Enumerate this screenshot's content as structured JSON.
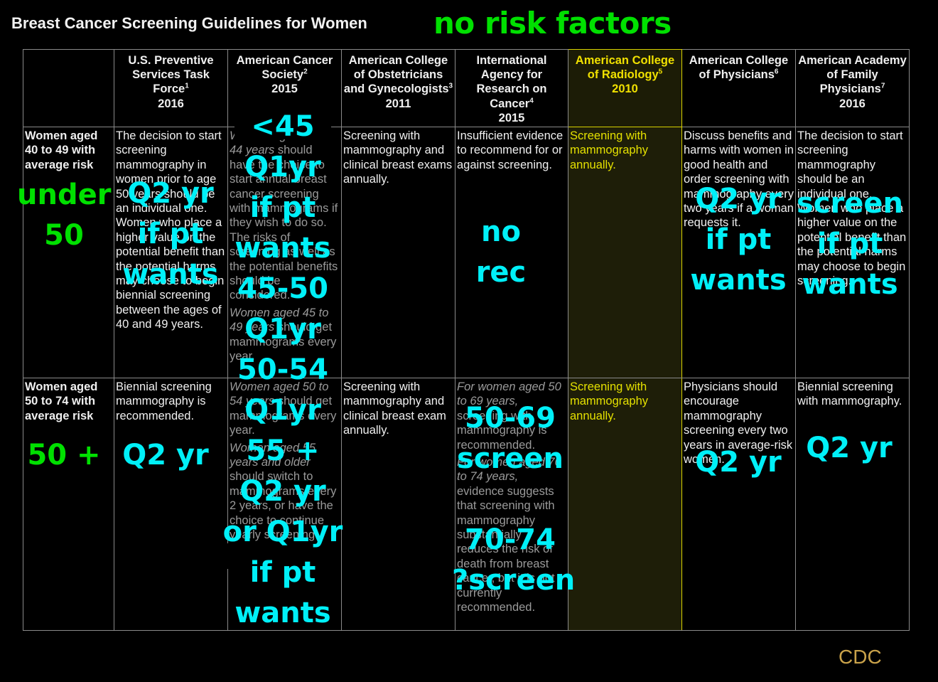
{
  "title": "Breast Cancer Screening Guidelines for Women",
  "note_title": "no risk factors",
  "headers": [
    {
      "name": "U.S. Preventive Services Task Force",
      "sup": "1",
      "year": "2016"
    },
    {
      "name": "American Cancer Society",
      "sup": "2",
      "year": "2015"
    },
    {
      "name": "American College of Obstetricians and Gynecologists",
      "sup": "3",
      "year": "2011"
    },
    {
      "name": "International Agency for Research on Cancer",
      "sup": "4",
      "year": "2015"
    },
    {
      "name": "American College of Radiology",
      "sup": "5",
      "year": "2010"
    },
    {
      "name": "American College of Physicians",
      "sup": "6",
      "year": ""
    },
    {
      "name": "American Academy of Family Physicians",
      "sup": "7",
      "year": "2016"
    }
  ],
  "rows": [
    {
      "label": "Women aged 40 to 49 with average risk",
      "cells": [
        "The decision to start screening mammography in women prior to age 50 years should be an individual one. Women who place a higher value on the potential benefit than the potential harms may choose to begin biennial screening between the ages of 40 and 49 years.",
        {
          "p1_italic": "Women aged 40 to 44 years",
          "p1_rest": " should have the choice to start annual breast cancer screening with mammograms if they wish to do so. The risks of screening as well as the potential benefits should be considered.",
          "p2_italic": "Women aged 45 to 49 years",
          "p2_rest": " should get mammograms every year."
        },
        "Screening with mammography and clinical breast exams annually.",
        "Insufficient evidence to recommend for or against screening.",
        "Screening with mammography annually.",
        "Discuss benefits and harms with women in good health and order screening with mammography every two years if a woman requests it.",
        "The decision to start screening mammography should be an individual one. Women who place a higher value on the potential benefit than the potential harms may choose to begin screening."
      ]
    },
    {
      "label": "Women aged 50 to 74 with average risk",
      "cells": [
        "Biennial screening mammography is recommended.",
        {
          "p1_italic": "Women aged 50 to 54 years",
          "p1_rest": " should get mammograms every year.",
          "p2_italic": "Women aged 55 years and older",
          "p2_rest": " should switch to mammograms every 2 years, or have the choice to continue yearly screening."
        },
        "Screening with mammography and clinical breast exam annually.",
        {
          "p1_italic": "For women aged 50 to 69 years,",
          "p1_rest": " screening with mammography is recommended.",
          "p2_italic": "For women aged 70 to 74 years,",
          "p2_rest": " evidence suggests that screening with mammography substantially reduces the risk of death from breast cancer, but it is not currently recommended."
        },
        "Screening with mammography annually.",
        "Physicians should encourage mammography screening every two years in average-risk women.",
        "Biennial screening with mammography."
      ]
    }
  ],
  "annotations": {
    "under50": "under\n50",
    "over50": "50 +",
    "uspstf_1": "Q2 yr\nif pt\nwants",
    "acs_1": "<45\nQ1yr\nif pt\nwants\n45-50\nQ1yr\n50-54\nQ1yr\n55 +\nQ2 yr\nor Q1yr\nif pt\nwants",
    "iarc_1": "no\nrec",
    "acp_1": "Q2 yr\nif pt\nwants",
    "aafp_1": "screen\nif pt\nwants",
    "uspstf_2": "Q2 yr",
    "iarc_2": "50-69\nscreen\n\n70-74\n?screen",
    "acp_2": "Q2 yr",
    "aafp_2": "Q2 yr"
  },
  "source": "CDC",
  "colors": {
    "annotation_cyan": "#00f0f8",
    "annotation_green": "#00e000",
    "acr_highlight": "#d8d200",
    "source": "#c9a24a"
  }
}
